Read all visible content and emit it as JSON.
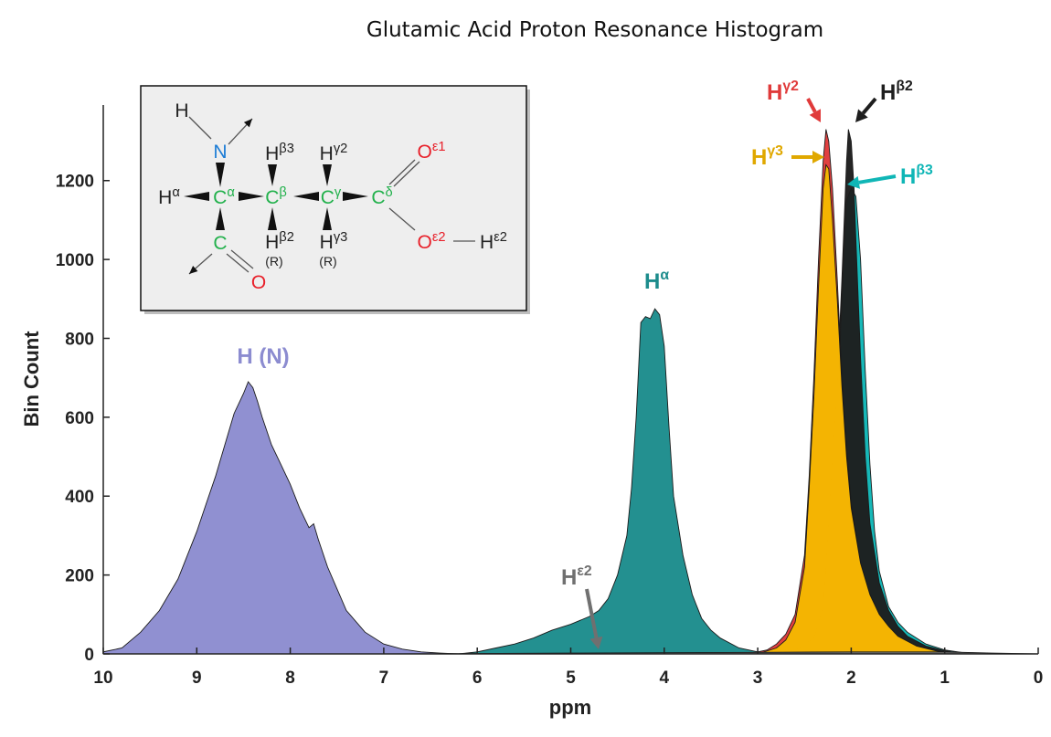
{
  "chart_data": {
    "type": "area",
    "title": "Glutamic Acid Proton Resonance Histogram",
    "xlabel": "ppm",
    "ylabel": "Bin Count",
    "xlim": [
      10,
      0
    ],
    "x_reversed": true,
    "ylim": [
      0,
      1380
    ],
    "xticks": [
      10,
      9,
      8,
      7,
      6,
      5,
      4,
      3,
      2,
      1,
      0
    ],
    "yticks": [
      0,
      200,
      400,
      600,
      800,
      1000,
      1200
    ],
    "grid": false,
    "series": [
      {
        "name": "H (N)",
        "color": "#8c8cd0",
        "x": [
          10.0,
          9.8,
          9.6,
          9.4,
          9.2,
          9.0,
          8.9,
          8.8,
          8.7,
          8.6,
          8.5,
          8.45,
          8.4,
          8.35,
          8.3,
          8.2,
          8.1,
          8.0,
          7.9,
          7.8,
          7.75,
          7.7,
          7.6,
          7.4,
          7.2,
          7.0,
          6.8,
          6.6,
          6.4,
          6.2
        ],
        "y": [
          5,
          15,
          55,
          110,
          190,
          310,
          380,
          450,
          530,
          610,
          660,
          690,
          675,
          640,
          600,
          530,
          480,
          430,
          370,
          320,
          330,
          290,
          220,
          110,
          55,
          25,
          12,
          5,
          2,
          0
        ]
      },
      {
        "name": "Hα",
        "color": "#1c8c8c",
        "x": [
          6.2,
          6.0,
          5.8,
          5.6,
          5.4,
          5.2,
          5.0,
          4.8,
          4.7,
          4.6,
          4.5,
          4.4,
          4.35,
          4.3,
          4.25,
          4.2,
          4.15,
          4.1,
          4.05,
          4.0,
          3.95,
          3.9,
          3.8,
          3.7,
          3.6,
          3.5,
          3.4,
          3.2,
          3.0,
          2.8
        ],
        "y": [
          0,
          5,
          15,
          25,
          40,
          60,
          75,
          95,
          110,
          140,
          200,
          300,
          420,
          600,
          840,
          855,
          850,
          875,
          860,
          780,
          580,
          400,
          250,
          150,
          90,
          60,
          40,
          15,
          5,
          0
        ]
      },
      {
        "name": "Hβ3",
        "color": "#10b6b6",
        "x": [
          3.0,
          2.8,
          2.6,
          2.5,
          2.4,
          2.3,
          2.2,
          2.15,
          2.1,
          2.05,
          2.0,
          1.95,
          1.9,
          1.85,
          1.8,
          1.75,
          1.7,
          1.6,
          1.5,
          1.4,
          1.3,
          1.2,
          1.0,
          0.8,
          0.6
        ],
        "y": [
          0,
          5,
          15,
          30,
          70,
          140,
          350,
          600,
          900,
          1150,
          1180,
          1160,
          1000,
          720,
          480,
          310,
          210,
          120,
          80,
          55,
          40,
          25,
          10,
          3,
          0
        ]
      },
      {
        "name": "Hβ2",
        "color": "#1e1e1e",
        "x": [
          2.8,
          2.6,
          2.4,
          2.3,
          2.25,
          2.2,
          2.15,
          2.1,
          2.05,
          2.03,
          2.0,
          1.97,
          1.95,
          1.9,
          1.85,
          1.8,
          1.7,
          1.6,
          1.5,
          1.4,
          1.2,
          1.0,
          0.8
        ],
        "y": [
          0,
          10,
          40,
          120,
          300,
          500,
          680,
          950,
          1250,
          1330,
          1300,
          1180,
          1050,
          750,
          500,
          330,
          180,
          110,
          70,
          45,
          20,
          8,
          0
        ]
      },
      {
        "name": "Hγ2",
        "color": "#e03a3a",
        "x": [
          3.1,
          2.9,
          2.8,
          2.7,
          2.6,
          2.5,
          2.45,
          2.4,
          2.35,
          2.3,
          2.27,
          2.24,
          2.2,
          2.15,
          2.1,
          2.05,
          2.0,
          1.9,
          1.8,
          1.7,
          1.6,
          1.5,
          1.3,
          1.1,
          0.9
        ],
        "y": [
          0,
          10,
          25,
          50,
          100,
          250,
          450,
          700,
          1000,
          1250,
          1330,
          1300,
          1180,
          950,
          700,
          520,
          380,
          230,
          150,
          100,
          70,
          45,
          20,
          8,
          0
        ]
      },
      {
        "name": "Hγ3",
        "color": "#f5b800",
        "x": [
          3.0,
          2.8,
          2.7,
          2.6,
          2.5,
          2.45,
          2.4,
          2.35,
          2.3,
          2.27,
          2.24,
          2.2,
          2.15,
          2.1,
          2.05,
          2.0,
          1.9,
          1.8,
          1.7,
          1.6,
          1.5,
          1.3,
          1.1,
          0.9
        ],
        "y": [
          0,
          15,
          35,
          80,
          220,
          420,
          650,
          930,
          1180,
          1240,
          1230,
          1100,
          900,
          680,
          500,
          370,
          230,
          150,
          100,
          70,
          45,
          20,
          8,
          0
        ]
      },
      {
        "name": "Hε2",
        "color": "#707070",
        "x": [
          7.0,
          6.0,
          5.0,
          4.0,
          3.0,
          2.0,
          1.0,
          0.5,
          0.0
        ],
        "y": [
          0,
          1,
          2,
          3,
          4,
          5,
          5,
          2,
          0
        ]
      }
    ],
    "annotations": [
      {
        "text": "H (N)",
        "color": "#8c8cd0"
      },
      {
        "text": "Hα",
        "color": "#1c8c8c"
      },
      {
        "text": "Hγ2",
        "color": "#e03a3a"
      },
      {
        "text": "Hβ2",
        "color": "#1e1e1e"
      },
      {
        "text": "Hγ3",
        "color": "#e0a800"
      },
      {
        "text": "Hβ3",
        "color": "#10b6b6"
      },
      {
        "text": "Hε2",
        "color": "#707070"
      }
    ]
  },
  "inset": {
    "atoms": {
      "H_top": "H",
      "N": "N",
      "Ha": "Hα",
      "Ca": "Cα",
      "Cb": "Cβ",
      "Cg": "Cγ",
      "Cd": "Cδ",
      "Hb3": "Hβ3",
      "Hg2": "Hγ2",
      "Hb2": "Hβ2",
      "Hg3": "Hγ3",
      "R1": "(R)",
      "R2": "(R)",
      "C": "C",
      "O": "O",
      "Oe1": "Oε1",
      "Oe2": "Oε2",
      "He2": "Hε2"
    },
    "colors": {
      "carbon": "#22b14c",
      "nitrogen": "#1c7cd5",
      "oxygen": "#e8202a",
      "hydrogen": "#222222"
    }
  }
}
